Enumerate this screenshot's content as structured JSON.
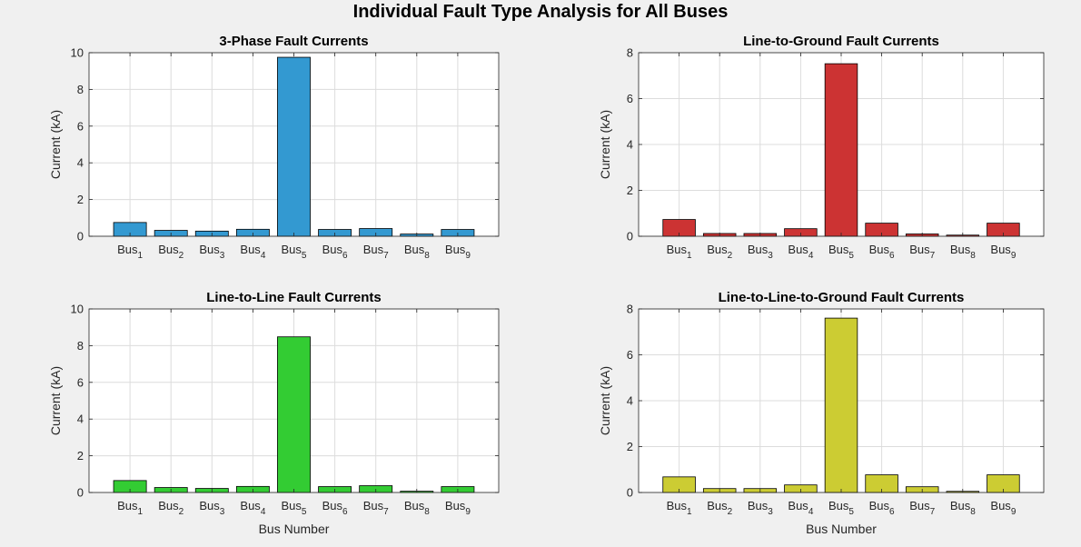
{
  "figure": {
    "title": "Individual Fault Type Analysis for All Buses"
  },
  "chart_data": [
    {
      "type": "bar",
      "title": "3-Phase Fault Currents",
      "xlabel": "",
      "ylabel": "Current (kA)",
      "ylim": [
        0,
        10
      ],
      "yticks": [
        0,
        2,
        4,
        6,
        8,
        10
      ],
      "grid": true,
      "color": "#3399d1",
      "categories": [
        "Bus",
        "Bus",
        "Bus",
        "Bus",
        "Bus",
        "Bus",
        "Bus",
        "Bus",
        "Bus"
      ],
      "category_subscripts": [
        "1",
        "2",
        "3",
        "4",
        "5",
        "6",
        "7",
        "8",
        "9"
      ],
      "values": [
        0.75,
        0.32,
        0.28,
        0.38,
        9.75,
        0.37,
        0.42,
        0.12,
        0.37
      ]
    },
    {
      "type": "bar",
      "title": "Line-to-Ground Fault Currents",
      "xlabel": "",
      "ylabel": "Current (kA)",
      "ylim": [
        0,
        8
      ],
      "yticks": [
        0,
        2,
        4,
        6,
        8
      ],
      "grid": true,
      "color": "#cc3333",
      "categories": [
        "Bus",
        "Bus",
        "Bus",
        "Bus",
        "Bus",
        "Bus",
        "Bus",
        "Bus",
        "Bus"
      ],
      "category_subscripts": [
        "1",
        "2",
        "3",
        "4",
        "5",
        "6",
        "7",
        "8",
        "9"
      ],
      "values": [
        0.73,
        0.12,
        0.12,
        0.33,
        7.52,
        0.57,
        0.1,
        0.05,
        0.57
      ]
    },
    {
      "type": "bar",
      "title": "Line-to-Line Fault Currents",
      "xlabel": "Bus Number",
      "ylabel": "Current (kA)",
      "ylim": [
        0,
        10
      ],
      "yticks": [
        0,
        2,
        4,
        6,
        8,
        10
      ],
      "grid": true,
      "color": "#33cc33",
      "categories": [
        "Bus",
        "Bus",
        "Bus",
        "Bus",
        "Bus",
        "Bus",
        "Bus",
        "Bus",
        "Bus"
      ],
      "category_subscripts": [
        "1",
        "2",
        "3",
        "4",
        "5",
        "6",
        "7",
        "8",
        "9"
      ],
      "values": [
        0.65,
        0.27,
        0.22,
        0.33,
        8.48,
        0.32,
        0.37,
        0.07,
        0.32
      ]
    },
    {
      "type": "bar",
      "title": "Line-to-Line-to-Ground Fault Currents",
      "xlabel": "Bus Number",
      "ylabel": "Current (kA)",
      "ylim": [
        0,
        8
      ],
      "yticks": [
        0,
        2,
        4,
        6,
        8
      ],
      "grid": true,
      "color": "#cccc33",
      "categories": [
        "Bus",
        "Bus",
        "Bus",
        "Bus",
        "Bus",
        "Bus",
        "Bus",
        "Bus",
        "Bus"
      ],
      "category_subscripts": [
        "1",
        "2",
        "3",
        "4",
        "5",
        "6",
        "7",
        "8",
        "9"
      ],
      "values": [
        0.68,
        0.17,
        0.17,
        0.33,
        7.6,
        0.77,
        0.25,
        0.05,
        0.77
      ]
    }
  ]
}
